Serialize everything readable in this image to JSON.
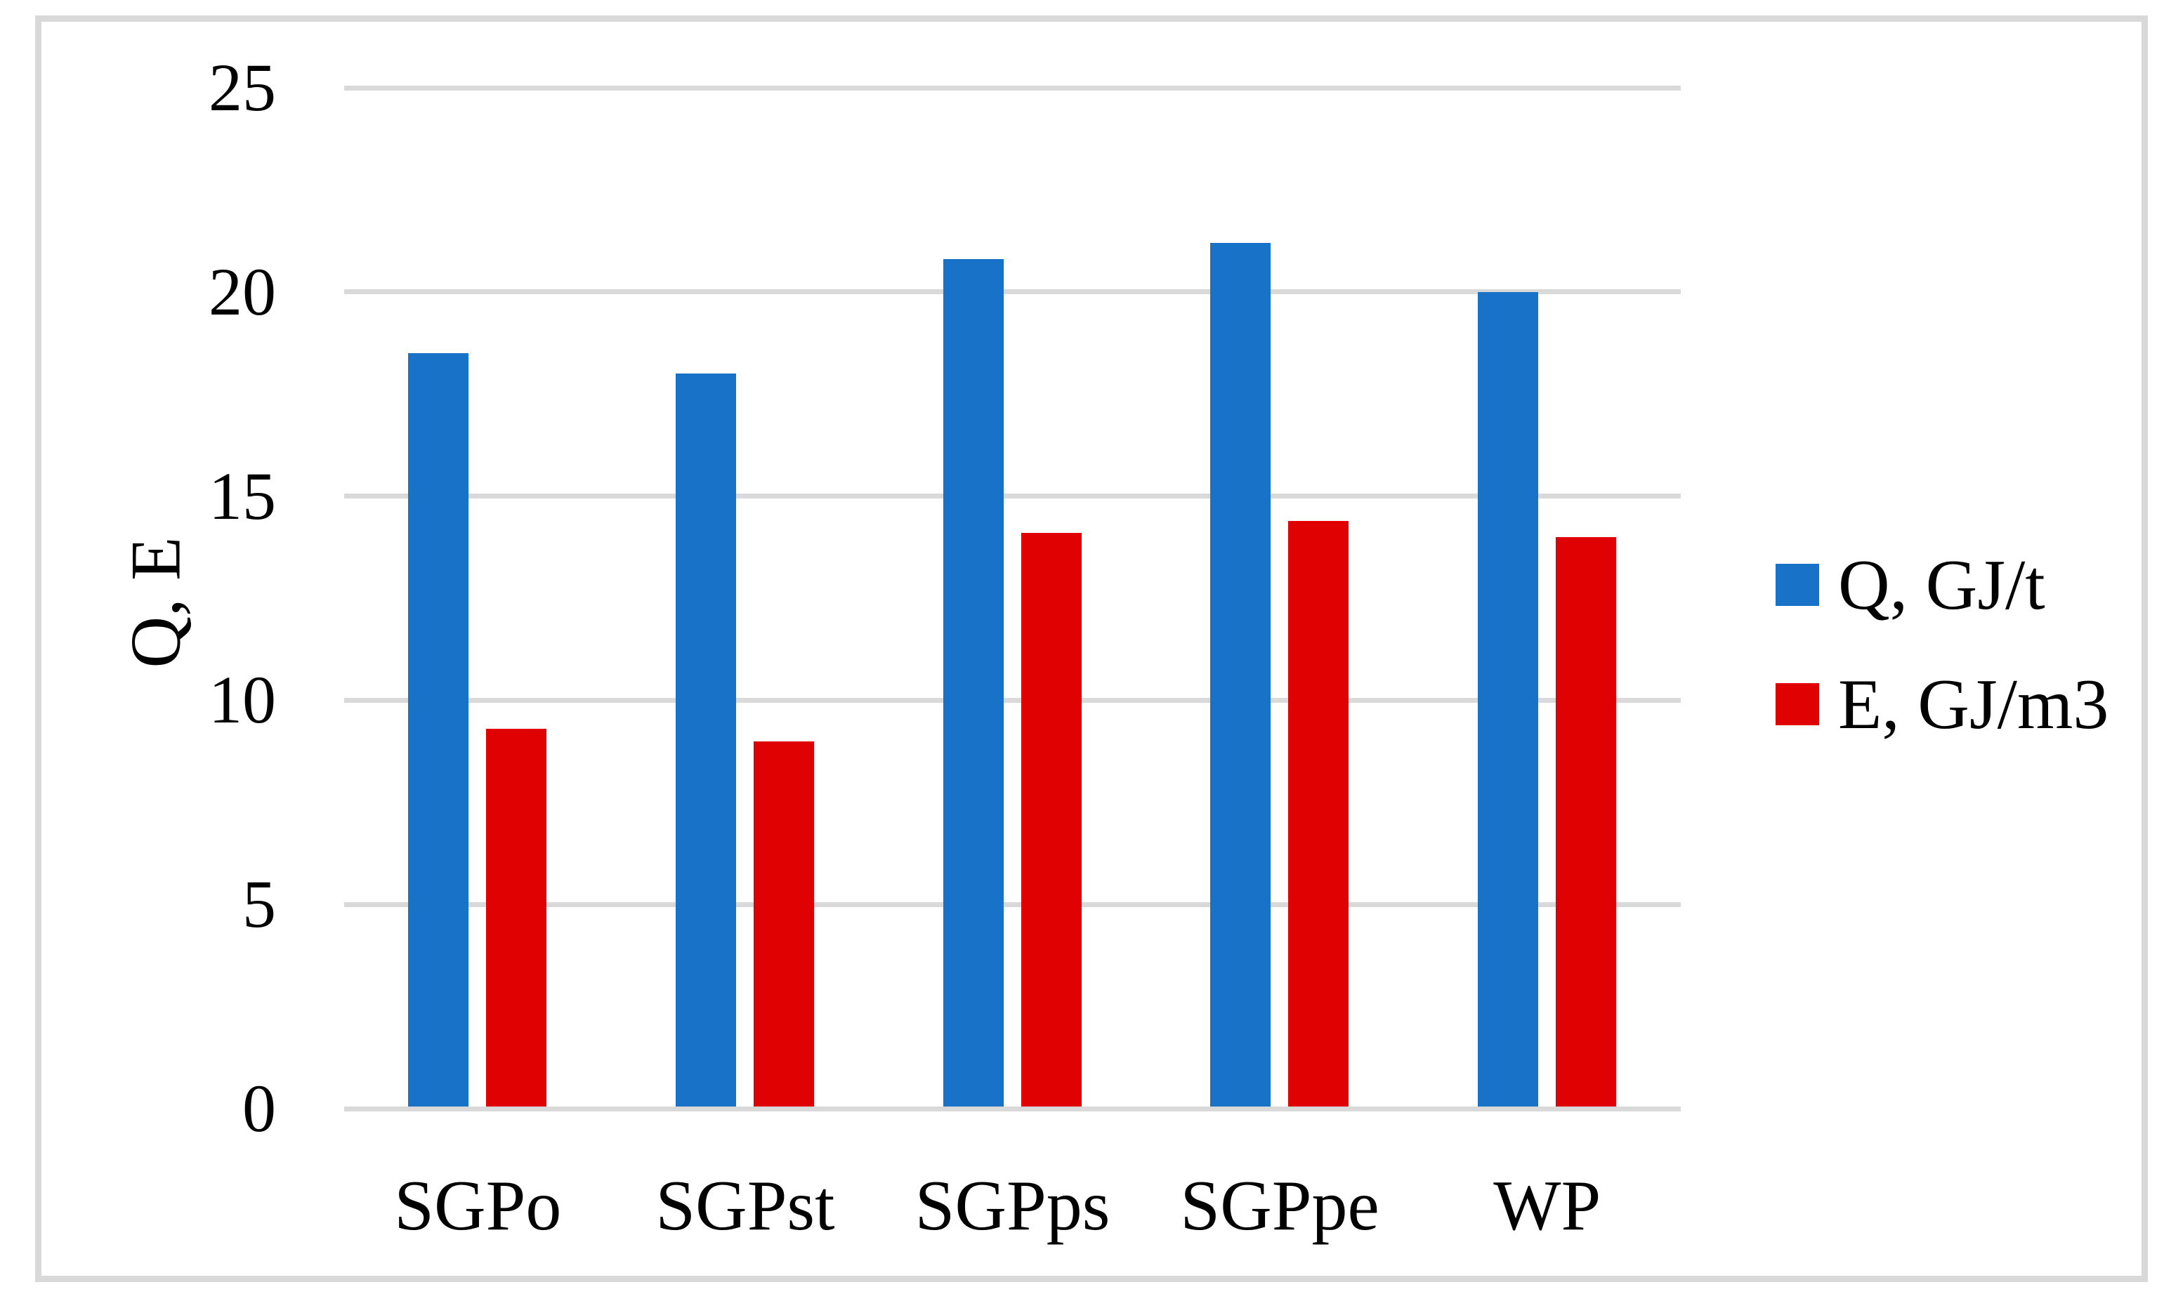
{
  "figure": {
    "background": "#FFFFFF",
    "border_color": "#D9D9D9"
  },
  "chart_data": {
    "type": "bar",
    "categories": [
      "SGPo",
      "SGPst",
      "SGPps",
      "SGPpe",
      "WP"
    ],
    "series": [
      {
        "name": "Q, GJ/t",
        "color": "#1772C8",
        "values": [
          18.5,
          18,
          20.8,
          21.2,
          20
        ]
      },
      {
        "name": "E, GJ/m3",
        "color": "#E00202",
        "values": [
          9.3,
          9,
          14.1,
          14.4,
          14
        ]
      }
    ],
    "ylabel": "Q, E",
    "ylim": [
      0,
      25
    ],
    "yticks": [
      0,
      5,
      10,
      15,
      20,
      25
    ],
    "grid": true,
    "gridline_color": "#D9D9D9",
    "legend_position": "right"
  }
}
